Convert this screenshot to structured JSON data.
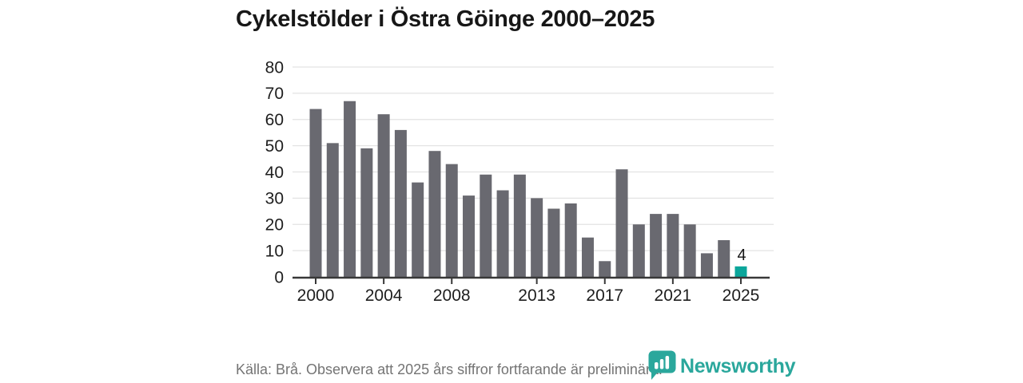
{
  "title": "Cykelstölder i Östra Göinge 2000–2025",
  "footer": {
    "source_note": "Källa: Brå. Observera att 2025 års siffror fortfarande är preliminära.",
    "brand": "Newsworthy"
  },
  "colors": {
    "bar": "#696970",
    "highlight": "#0ba69b",
    "brand_teal": "#2aa79c",
    "grid": "#e3e3e3",
    "axis_line": "#383838",
    "tick_text": "#1e1e1e",
    "annotation_text": "#141414"
  },
  "chart_data": {
    "type": "bar",
    "title": "Cykelstölder i Östra Göinge 2000–2025",
    "categories": [
      "2000",
      "2001",
      "2002",
      "2003",
      "2004",
      "2005",
      "2006",
      "2007",
      "2008",
      "2009",
      "2010",
      "2011",
      "2012",
      "2013",
      "2014",
      "2015",
      "2016",
      "2017",
      "2018",
      "2019",
      "2020",
      "2021",
      "2022",
      "2023",
      "2024",
      "2025"
    ],
    "values": [
      64,
      51,
      67,
      49,
      62,
      56,
      36,
      48,
      43,
      31,
      39,
      33,
      39,
      30,
      26,
      28,
      15,
      6,
      41,
      20,
      24,
      24,
      20,
      9,
      14,
      4
    ],
    "highlight_index": 25,
    "value_label": {
      "index": 25,
      "text": "4"
    },
    "x_tick_labels": [
      "2000",
      "2004",
      "2008",
      "2013",
      "2017",
      "2021",
      "2025"
    ],
    "y_ticks": [
      0,
      10,
      20,
      30,
      40,
      50,
      60,
      70,
      80
    ],
    "ylim": [
      0,
      80
    ],
    "xlabel": "",
    "ylabel": "",
    "grid": true,
    "legend": false
  }
}
